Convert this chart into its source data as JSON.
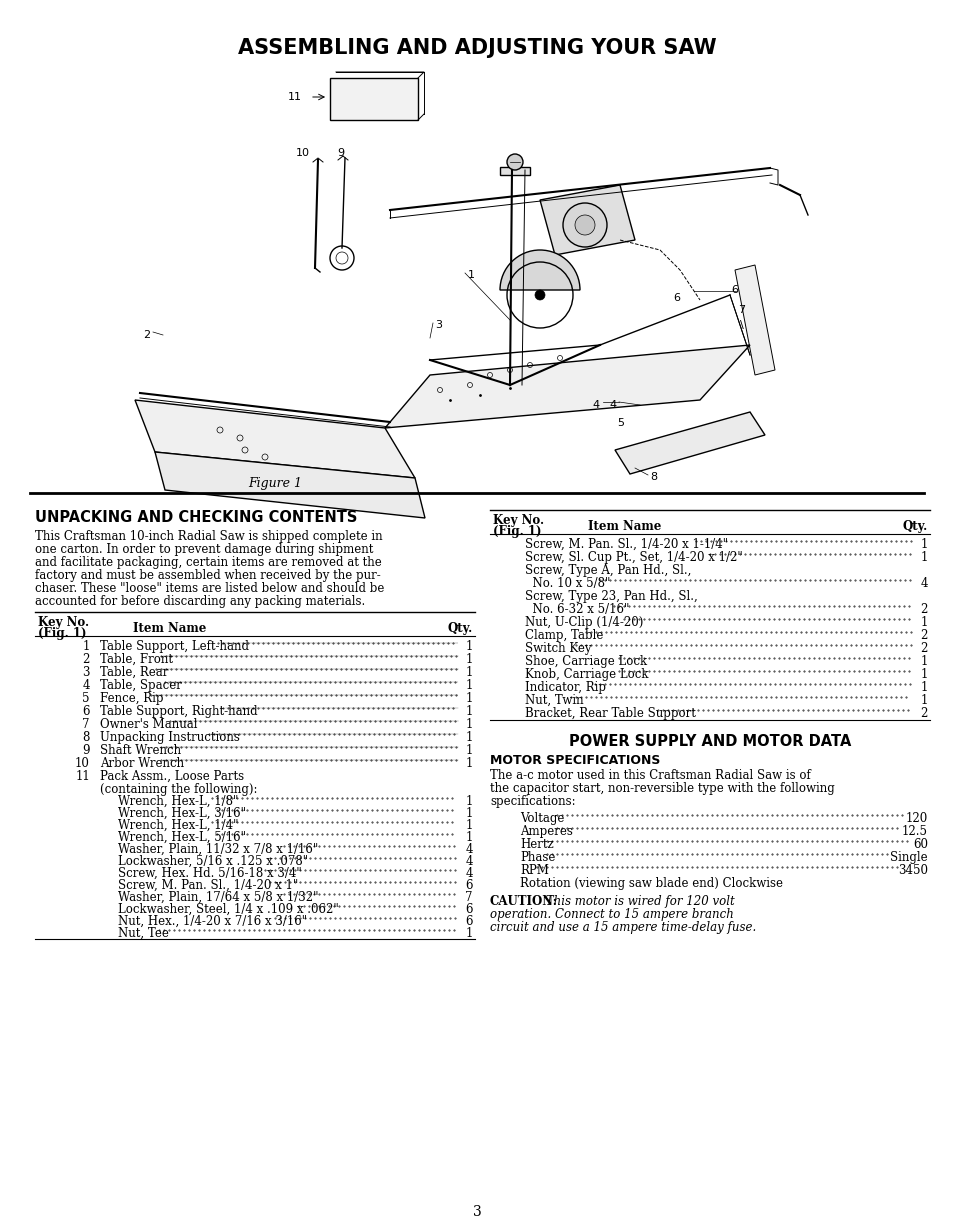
{
  "title": "ASSEMBLING AND ADJUSTING YOUR SAW",
  "figure_caption": "Figure 1",
  "section1_title": "UNPACKING AND CHECKING CONTENTS",
  "section1_body_lines": [
    "This Craftsman 10-inch Radial Saw is shipped complete in",
    "one carton. In order to prevent damage during shipment",
    "and facilitate packaging, certain items are removed at the",
    "factory and must be assembled when received by the pur-",
    "chaser. These \"loose\" items are listed below and should be",
    "accounted for before discarding any packing materials."
  ],
  "table1_rows": [
    [
      "1",
      "Table Support, Left-hand",
      "1"
    ],
    [
      "2",
      "Table, Front",
      "1"
    ],
    [
      "3",
      "Table, Rear",
      "1"
    ],
    [
      "4",
      "Table, Spacer",
      "1"
    ],
    [
      "5",
      "Fence, Rip",
      "1"
    ],
    [
      "6",
      "Table Support, Right-hand",
      "1"
    ],
    [
      "7",
      "Owner's Manual",
      "1"
    ],
    [
      "8",
      "Unpacking Instructions",
      "1"
    ],
    [
      "9",
      "Shaft Wrench",
      "1"
    ],
    [
      "10",
      "Arbor Wrench",
      "1"
    ]
  ],
  "table1_sub_items": [
    [
      "Wrench, Hex-L, 1/8\"",
      "1"
    ],
    [
      "Wrench, Hex-L, 3/16\"",
      "1"
    ],
    [
      "Wrench, Hex-L, 1/4\"",
      "1"
    ],
    [
      "Wrench, Hex-L, 5/16\"",
      "1"
    ],
    [
      "Washer, Plain, 11/32 x 7/8 x 1/16\"",
      "4"
    ],
    [
      "Lockwasher, 5/16 x .125 x .078\"",
      "4"
    ],
    [
      "Screw, Hex. Hd. 5/16-18 x 3/4\"",
      "4"
    ],
    [
      "Screw, M. Pan. Sl., 1/4-20 x 1\"",
      "6"
    ],
    [
      "Washer, Plain, 17/64 x 5/8 x 1/32\"",
      "7"
    ],
    [
      "Lockwasher, Steel, 1/4 x .109 x .062\"",
      "6"
    ],
    [
      "Nut, Hex., 1/4-20 x 7/16 x 3/16\"",
      "6"
    ],
    [
      "Nut, Tee",
      "1"
    ]
  ],
  "table2_rows": [
    [
      "Screw, M. Pan. Sl., 1/4-20 x 1-1/4\"",
      "1"
    ],
    [
      "Screw, Sl. Cup Pt., Set, 1/4-20 x 1/2\"",
      "1"
    ],
    [
      "Screw, Type A, Pan Hd., Sl.,",
      ""
    ],
    [
      "  No. 10 x 5/8\"",
      "4"
    ],
    [
      "Screw, Type 23, Pan Hd., Sl.,",
      ""
    ],
    [
      "  No. 6-32 x 5/16\"",
      "2"
    ],
    [
      "Nut, U-Clip (1/4-20)",
      "1"
    ],
    [
      "Clamp, Table",
      "2"
    ],
    [
      "Switch Key",
      "2"
    ],
    [
      "Shoe, Carriage Lock",
      "1"
    ],
    [
      "Knob, Carriage Lock",
      "1"
    ],
    [
      "Indicator, Rip",
      "1"
    ],
    [
      "Nut, Twin",
      "1"
    ],
    [
      "Bracket, Rear Table Support",
      "2"
    ]
  ],
  "section2_title": "POWER SUPPLY AND MOTOR DATA",
  "section2_sub": "MOTOR SPECIFICATIONS",
  "section2_body_lines": [
    "The a-c motor used in this Craftsman Radial Saw is of",
    "the capacitor start, non-reversible type with the following",
    "specifications:"
  ],
  "motor_specs": [
    [
      "Voltage",
      "120"
    ],
    [
      "Amperes",
      "12.5"
    ],
    [
      "Hertz",
      "60"
    ],
    [
      "Phase",
      "Single"
    ],
    [
      "RPM",
      "3450"
    ]
  ],
  "motor_rotation": "Rotation (viewing saw blade end) Clockwise",
  "caution_bold": "CAUTION:",
  "caution_rest_lines": [
    " This motor is wired for 120 volt",
    "operation. Connect to 15 ampere branch",
    "circuit and use a 15 ampere time-delay fuse."
  ],
  "page_number": "3",
  "bg_color": "#ffffff"
}
